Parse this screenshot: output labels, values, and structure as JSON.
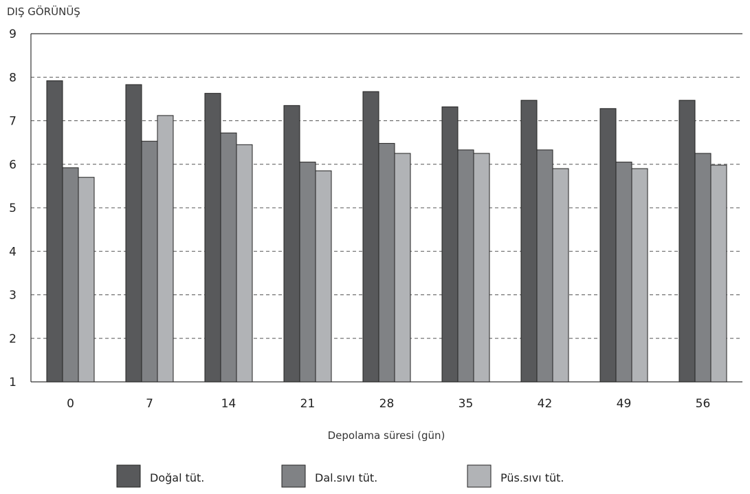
{
  "chart_data": {
    "type": "bar",
    "ylabel": "DIŞ GÖRÜNÜŞ",
    "xlabel": "Depolama süresi (gün)",
    "ylim": [
      1,
      9
    ],
    "yticks": [
      "1",
      "2",
      "3",
      "4",
      "5",
      "6",
      "7",
      "8",
      "9"
    ],
    "grid": "dashed horizontal",
    "categories": [
      "0",
      "7",
      "14",
      "21",
      "28",
      "35",
      "42",
      "49",
      "56"
    ],
    "series": [
      {
        "name": "Doğal tüt.",
        "color": "#58595b",
        "values": [
          7.92,
          7.83,
          7.63,
          7.35,
          7.67,
          7.32,
          7.47,
          7.28,
          7.47
        ]
      },
      {
        "name": "Dal.sıvı tüt.",
        "color": "#808285",
        "values": [
          5.92,
          6.53,
          6.72,
          6.05,
          6.48,
          6.33,
          6.33,
          6.05,
          6.25
        ]
      },
      {
        "name": "Püs.sıvı tüt.",
        "color": "#b1b3b6",
        "values": [
          5.7,
          7.12,
          6.45,
          5.85,
          6.25,
          6.25,
          5.9,
          5.9,
          5.98
        ]
      }
    ],
    "legend_position": "bottom"
  }
}
